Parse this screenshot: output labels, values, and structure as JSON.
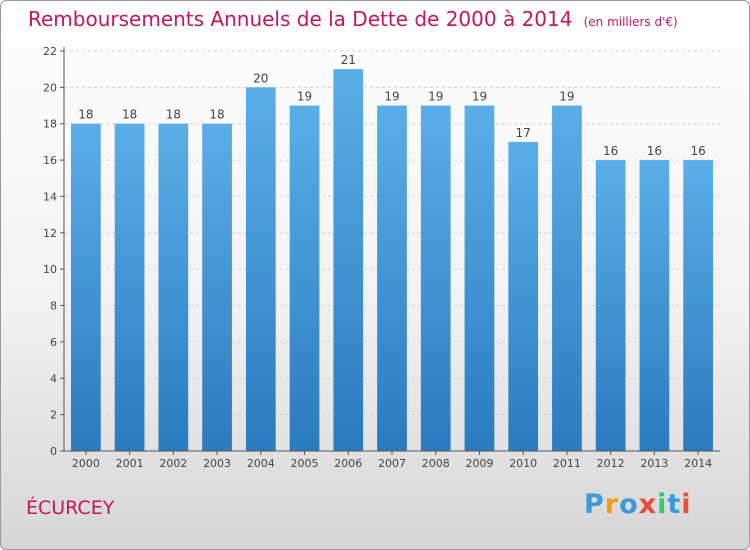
{
  "title": "Remboursements Annuels de la Dette de 2000 à 2014",
  "unit_label": "(en milliers d'€)",
  "commune": "ÉCURCEY",
  "logo": {
    "letters": [
      "P",
      "r",
      "o",
      "x",
      "i",
      "t",
      "i"
    ],
    "colors": [
      "#3a9ad9",
      "#f39c12",
      "#3a9ad9",
      "#e74c3c",
      "#2ecc71",
      "#3a9ad9",
      "#e74c3c"
    ]
  },
  "chart_data": {
    "type": "bar",
    "categories": [
      "2000",
      "2001",
      "2002",
      "2003",
      "2004",
      "2005",
      "2006",
      "2007",
      "2008",
      "2009",
      "2010",
      "2011",
      "2012",
      "2013",
      "2014"
    ],
    "values": [
      18,
      18,
      18,
      18,
      20,
      19,
      21,
      19,
      19,
      19,
      17,
      19,
      16,
      16,
      16
    ],
    "data_labels": [
      "18",
      "18",
      "18",
      "18",
      "20",
      "19",
      "21",
      "19",
      "19",
      "19",
      "17",
      "19",
      "16",
      "16",
      "16"
    ],
    "yticks": [
      "0",
      "2",
      "4",
      "6",
      "8",
      "10",
      "12",
      "14",
      "16",
      "18",
      "20",
      "22"
    ],
    "ylim": [
      0,
      22
    ],
    "grid": true,
    "bar_color_top": "#5aaee8",
    "bar_color_bottom": "#2a7bbf",
    "xlabel": "",
    "ylabel": ""
  }
}
